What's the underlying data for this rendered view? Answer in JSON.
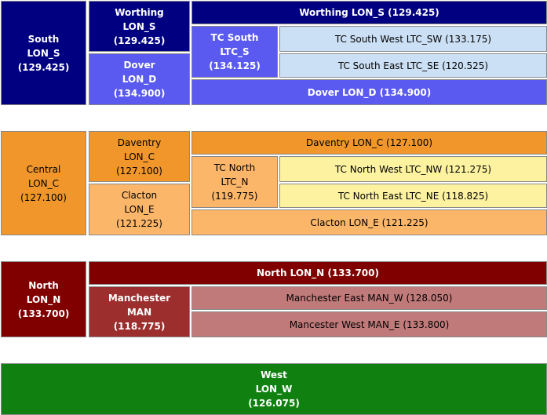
{
  "south": {
    "root": {
      "title": "South",
      "code": "LON_S",
      "value": "(129.425)"
    },
    "worthing": {
      "title": "Worthing",
      "code": "LON_S",
      "value": "(129.425)"
    },
    "worthing_row": "Worthing LON_S (129.425)",
    "tc": {
      "title": "TC South",
      "code": "LTC_S",
      "value": "(134.125)"
    },
    "tc_sw": "TC South West LTC_SW (133.175)",
    "tc_se": "TC South East LTC_SE (120.525)",
    "dover": {
      "title": "Dover",
      "code": "LON_D",
      "value": "(134.900)"
    },
    "dover_row": "Dover LON_D (134.900)"
  },
  "central": {
    "root": {
      "title": "Central",
      "code": "LON_C",
      "value": "(127.100)"
    },
    "daventry": {
      "title": "Daventry",
      "code": "LON_C",
      "value": "(127.100)"
    },
    "daventry_row": "Daventry LON_C (127.100)",
    "tc": {
      "title": "TC North",
      "code": "LTC_N",
      "value": "(119.775)"
    },
    "tc_nw": "TC North West LTC_NW (121.275)",
    "tc_ne": "TC North East LTC_NE (118.825)",
    "clacton": {
      "title": "Clacton",
      "code": "LON_E",
      "value": "(121.225)"
    },
    "clacton_row": "Clacton LON_E (121.225)"
  },
  "north": {
    "root": {
      "title": "North",
      "code": "LON_N",
      "value": "(133.700)"
    },
    "north_row": "North LON_N (133.700)",
    "manchester": {
      "title": "Manchester",
      "code": "MAN",
      "value": "(118.775)"
    },
    "man_east": "Manchester East MAN_W (128.050)",
    "man_west": "Mancester West MAN_E (133.800)"
  },
  "west": {
    "root": {
      "title": "West",
      "code": "LON_W",
      "value": "(126.075)"
    }
  }
}
